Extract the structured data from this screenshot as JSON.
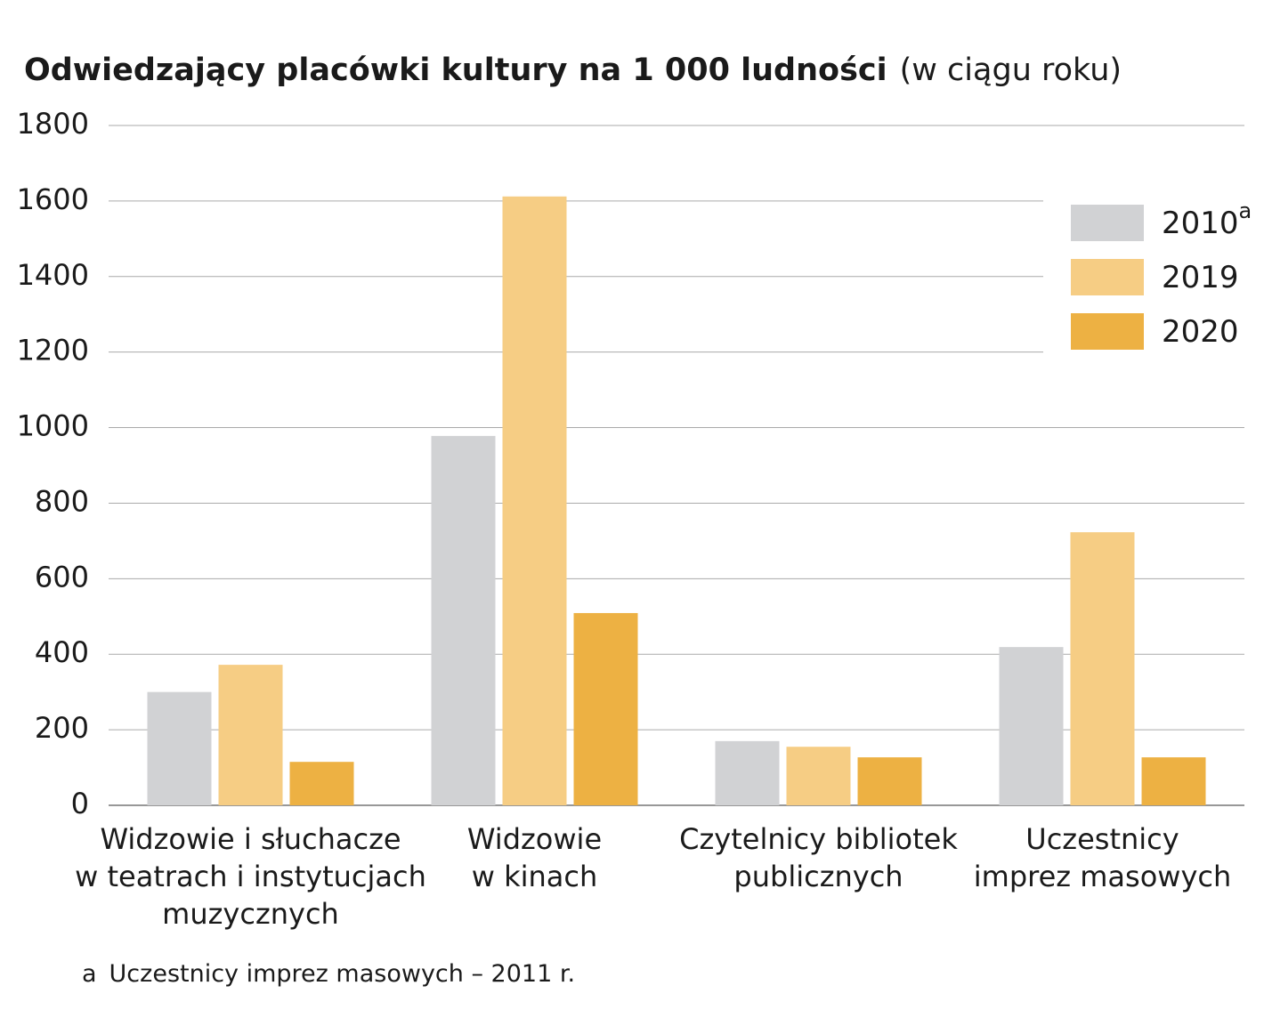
{
  "chart_data": {
    "type": "bar",
    "title": "Odwiedzający placówki kultury na 1 000 ludności",
    "subtitle": "(w ciągu roku)",
    "categories": [
      [
        "Widzowie i słuchacze",
        "w teatrach i instytucjach",
        "muzycznych"
      ],
      [
        "Widzowie",
        "w kinach"
      ],
      [
        "Czytelnicy bibliotek",
        "publicznych"
      ],
      [
        "Uczestnicy",
        "imprez masowych"
      ]
    ],
    "series": [
      {
        "name": "2010",
        "note": "a",
        "color": "#d1d2d4",
        "values": [
          300,
          978,
          170,
          419
        ]
      },
      {
        "name": "2019",
        "color": "#f6cd84",
        "values": [
          372,
          1612,
          155,
          723
        ]
      },
      {
        "name": "2020",
        "color": "#edb143",
        "values": [
          115,
          509,
          127,
          127
        ]
      }
    ],
    "ylim": [
      0,
      1800
    ],
    "yticks": [
      0,
      200,
      400,
      600,
      800,
      1000,
      1200,
      1400,
      1600,
      1800
    ],
    "grid": true,
    "legend": "top-right",
    "footnote": {
      "marker": "a",
      "text": "Uczestnicy imprez masowych – 2011 r."
    }
  }
}
